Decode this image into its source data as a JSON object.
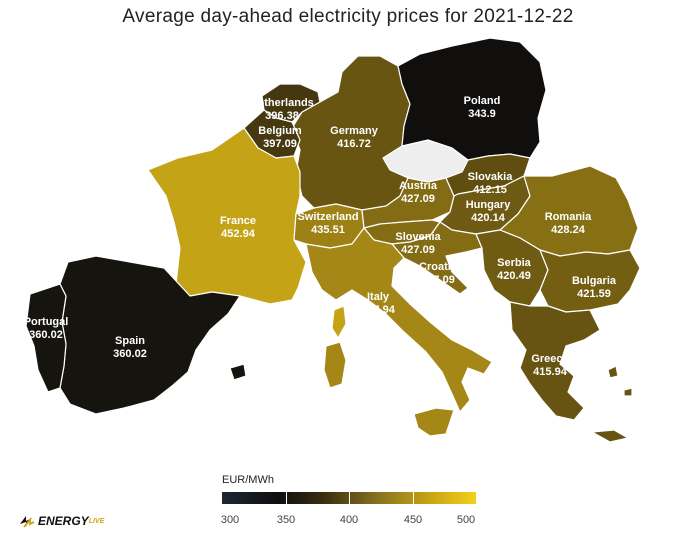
{
  "title": "Average day-ahead electricity prices for 2021-12-22",
  "legend": {
    "title": "EUR/MWh",
    "ticks": [
      "300",
      "350",
      "400",
      "450",
      "500"
    ],
    "range": [
      300,
      500
    ],
    "colors": [
      "#1d2735",
      "#0e0e0e",
      "#3a2e10",
      "#8a7420",
      "#c9a414",
      "#f3cf1c"
    ]
  },
  "logo": {
    "text": "ENERGY",
    "suffix": "LIVE"
  },
  "countries": [
    {
      "name": "Netherlands",
      "price": "396.38"
    },
    {
      "name": "Belgium",
      "price": "397.09"
    },
    {
      "name": "Germany",
      "price": "416.72"
    },
    {
      "name": "Poland",
      "price": "343.9"
    },
    {
      "name": "France",
      "price": "452.94"
    },
    {
      "name": "Switzerland",
      "price": "435.51"
    },
    {
      "name": "Austria",
      "price": "427.09"
    },
    {
      "name": "Slovakia",
      "price": "412.15"
    },
    {
      "name": "Hungary",
      "price": "420.14"
    },
    {
      "name": "Romania",
      "price": "428.24"
    },
    {
      "name": "Slovenia",
      "price": "427.09"
    },
    {
      "name": "Croatia",
      "price": "427.09"
    },
    {
      "name": "Serbia",
      "price": "420.49"
    },
    {
      "name": "Bulgaria",
      "price": "421.59"
    },
    {
      "name": "Italy",
      "price": "437.94"
    },
    {
      "name": "Portugal",
      "price": "360.02"
    },
    {
      "name": "Spain",
      "price": "360.02"
    },
    {
      "name": "Greece",
      "price": "415.94"
    }
  ],
  "no_data_color": "#eeeeee"
}
